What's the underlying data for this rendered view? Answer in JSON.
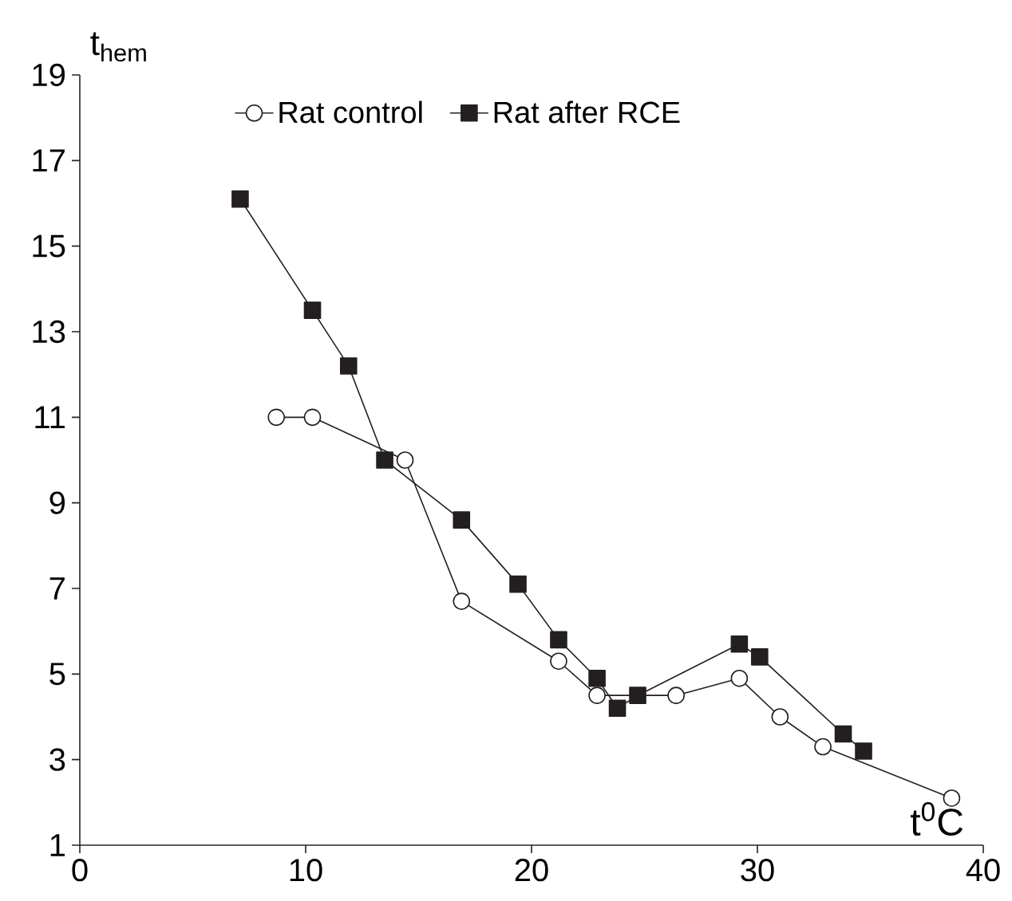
{
  "chart_data": {
    "type": "line",
    "xlabel": "t$^{0}$C",
    "ylabel": "t$_{hem}$",
    "xlim": [
      0,
      40
    ],
    "ylim": [
      1,
      19
    ],
    "xticks": [
      0,
      10,
      20,
      30,
      40
    ],
    "yticks": [
      1,
      3,
      5,
      7,
      9,
      11,
      13,
      15,
      17,
      19
    ],
    "grid": false,
    "legend": "top",
    "line_style": "solid",
    "series": [
      {
        "name": "Rat control",
        "color": "#231f20",
        "marker": "circle",
        "x": [
          8.7,
          10.3,
          14.4,
          16.9,
          21.2,
          22.9,
          26.4,
          29.2,
          31.0,
          32.9,
          38.6
        ],
        "values": [
          11.0,
          11.0,
          10.0,
          6.7,
          5.3,
          4.5,
          4.5,
          4.9,
          4.0,
          3.3,
          2.1
        ]
      },
      {
        "name": "Rat after RCE",
        "color": "#231f20",
        "marker": "square",
        "x": [
          7.1,
          10.3,
          11.9,
          13.5,
          16.9,
          19.4,
          21.2,
          22.9,
          23.8,
          24.7,
          29.2,
          30.1,
          33.8,
          34.7
        ],
        "values": [
          16.1,
          13.5,
          12.2,
          10.0,
          8.6,
          7.1,
          5.8,
          4.9,
          4.2,
          4.5,
          5.7,
          5.4,
          3.6,
          3.2
        ]
      }
    ]
  }
}
